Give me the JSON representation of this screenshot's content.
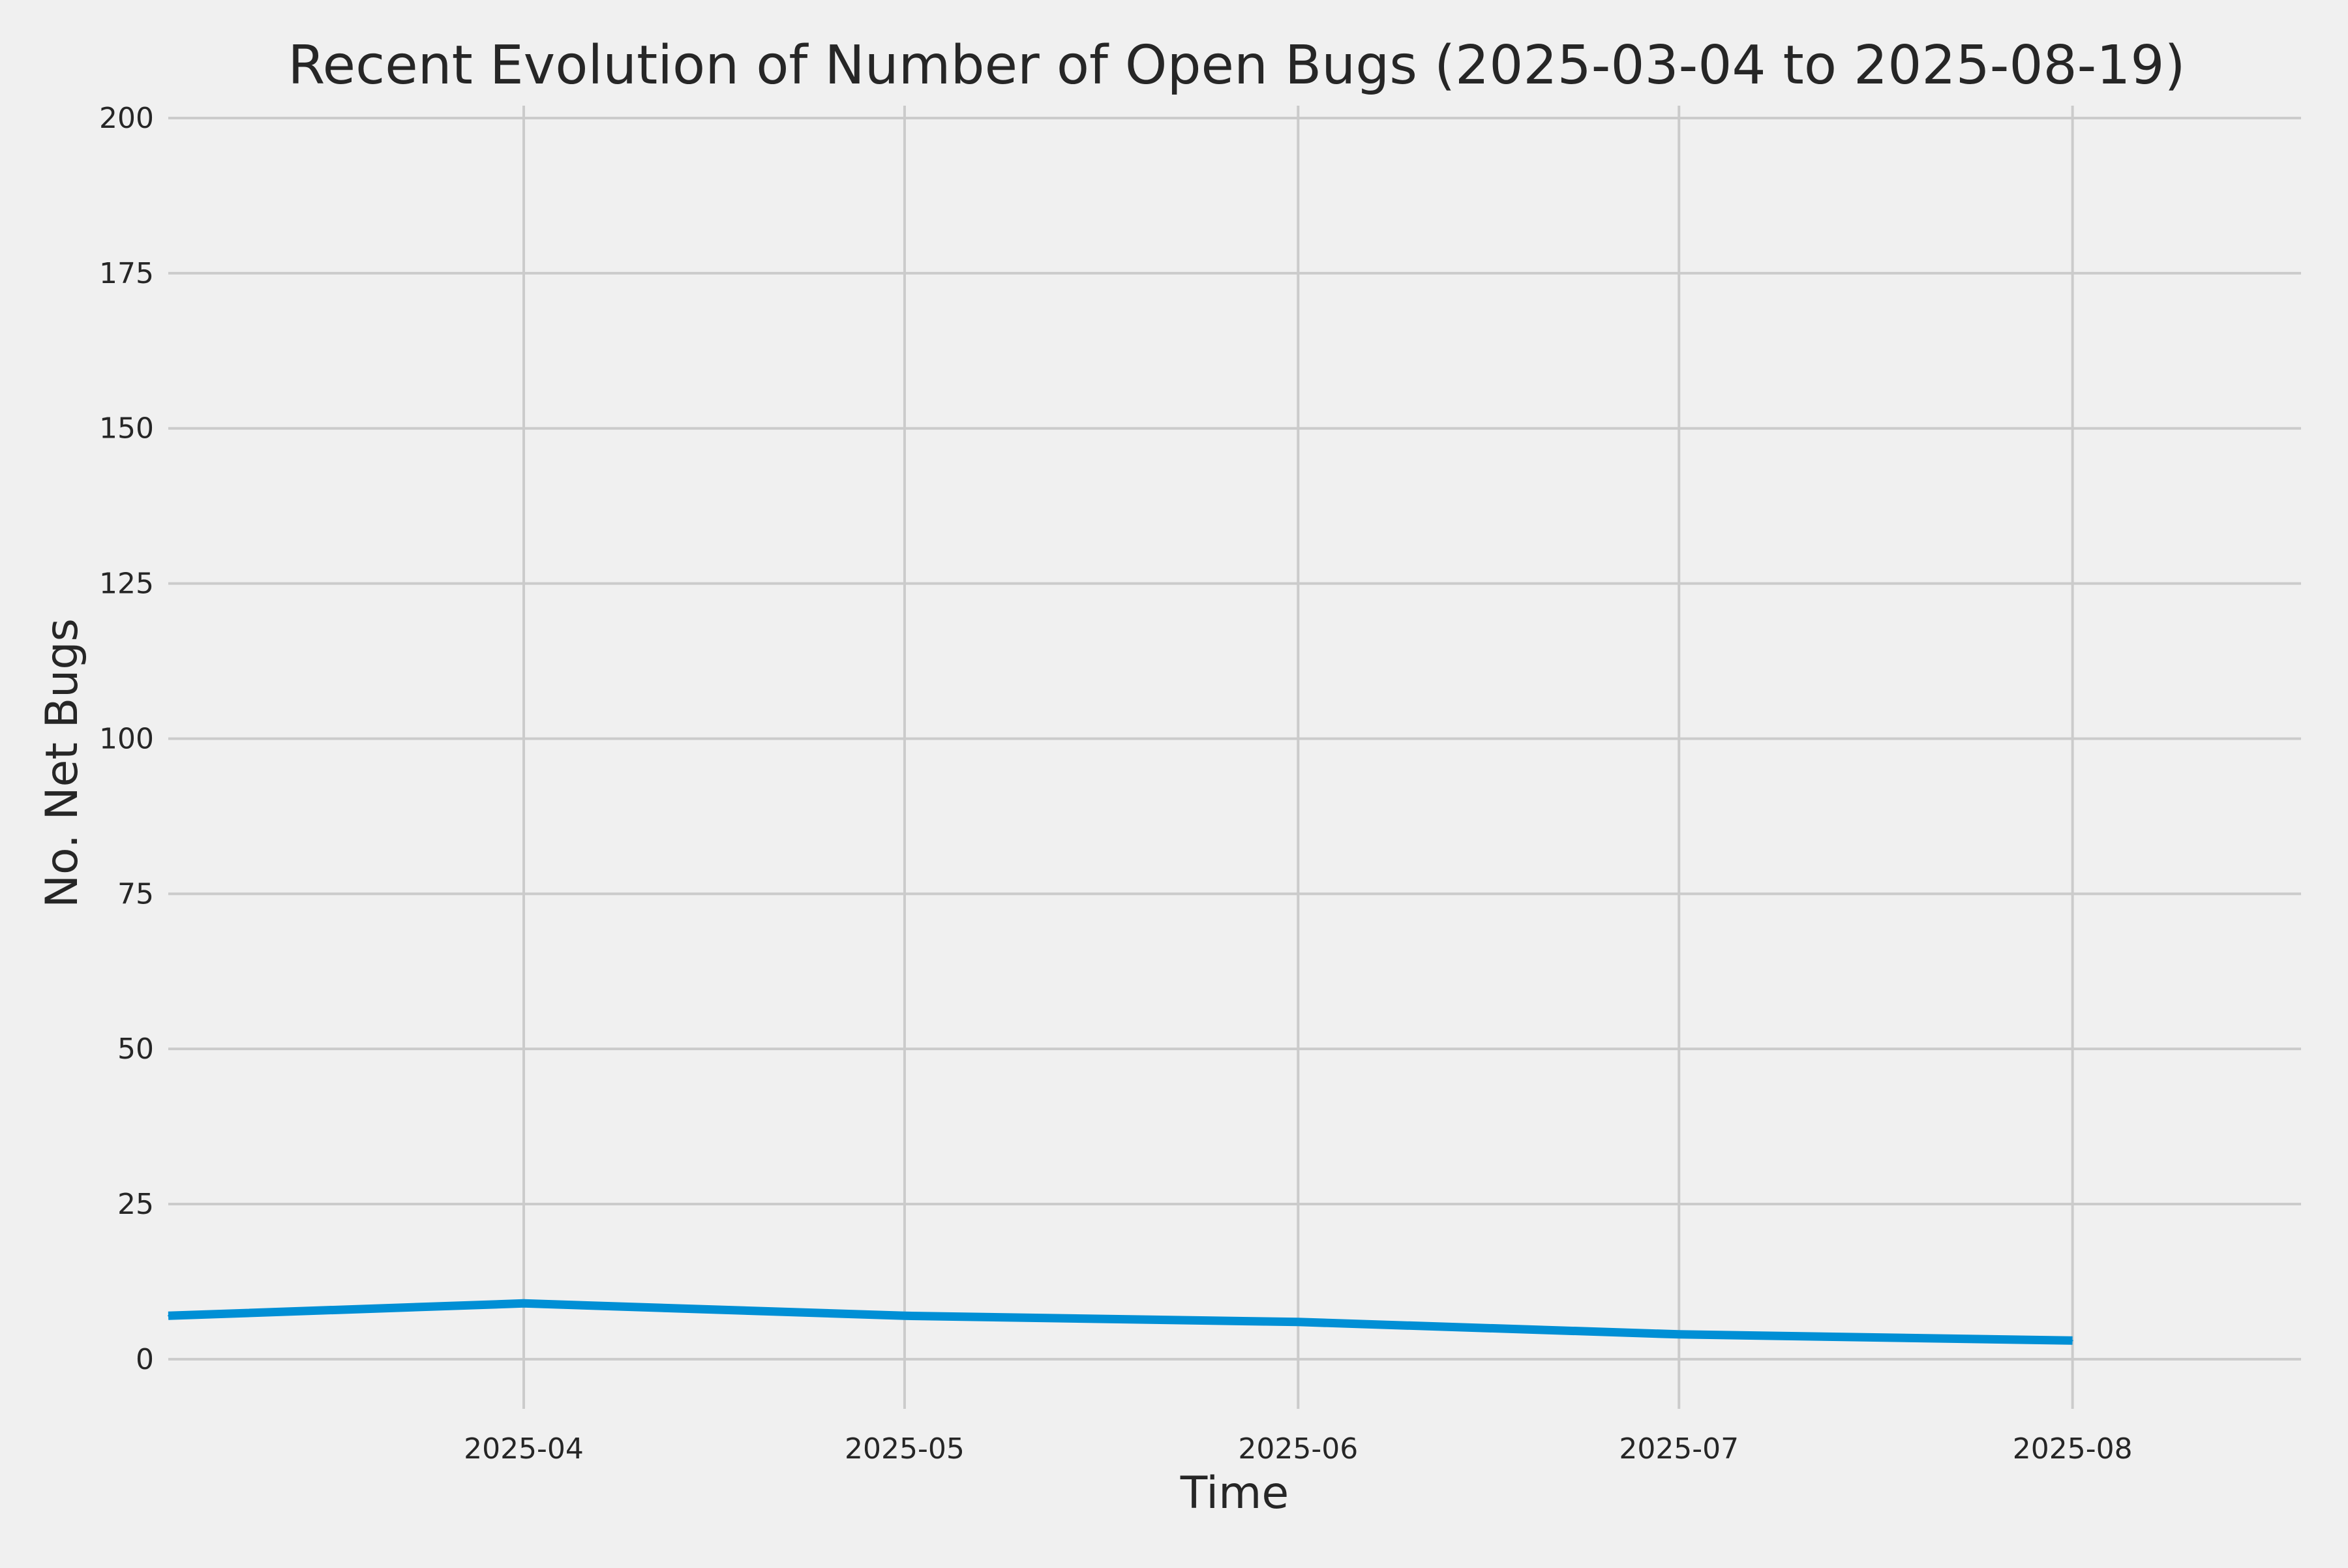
{
  "chart_data": {
    "type": "line",
    "title": "Recent Evolution of Number of Open Bugs (2025-03-04 to 2025-08-19)",
    "xlabel": "Time",
    "ylabel": "No. Net Bugs",
    "xlim": [
      "2025-03-04",
      "2025-08-19"
    ],
    "ylim": [
      -8,
      202
    ],
    "x_ticks": [
      {
        "date": "2025-04-01",
        "label": "2025-04"
      },
      {
        "date": "2025-05-01",
        "label": "2025-05"
      },
      {
        "date": "2025-06-01",
        "label": "2025-06"
      },
      {
        "date": "2025-07-01",
        "label": "2025-07"
      },
      {
        "date": "2025-08-01",
        "label": "2025-08"
      }
    ],
    "y_ticks": [
      0,
      25,
      50,
      75,
      100,
      125,
      150,
      175,
      200
    ],
    "grid": true,
    "legend": "none",
    "series": [
      {
        "color": "#008fd5",
        "points": [
          {
            "x": "2025-03-04",
            "y": 7
          },
          {
            "x": "2025-04-01",
            "y": 9
          },
          {
            "x": "2025-05-01",
            "y": 7
          },
          {
            "x": "2025-06-01",
            "y": 6
          },
          {
            "x": "2025-07-01",
            "y": 4
          },
          {
            "x": "2025-08-01",
            "y": 3
          }
        ]
      }
    ],
    "colors": {
      "background": "#f0f0f0",
      "grid": "#cbcbcb",
      "text": "#262626"
    }
  }
}
